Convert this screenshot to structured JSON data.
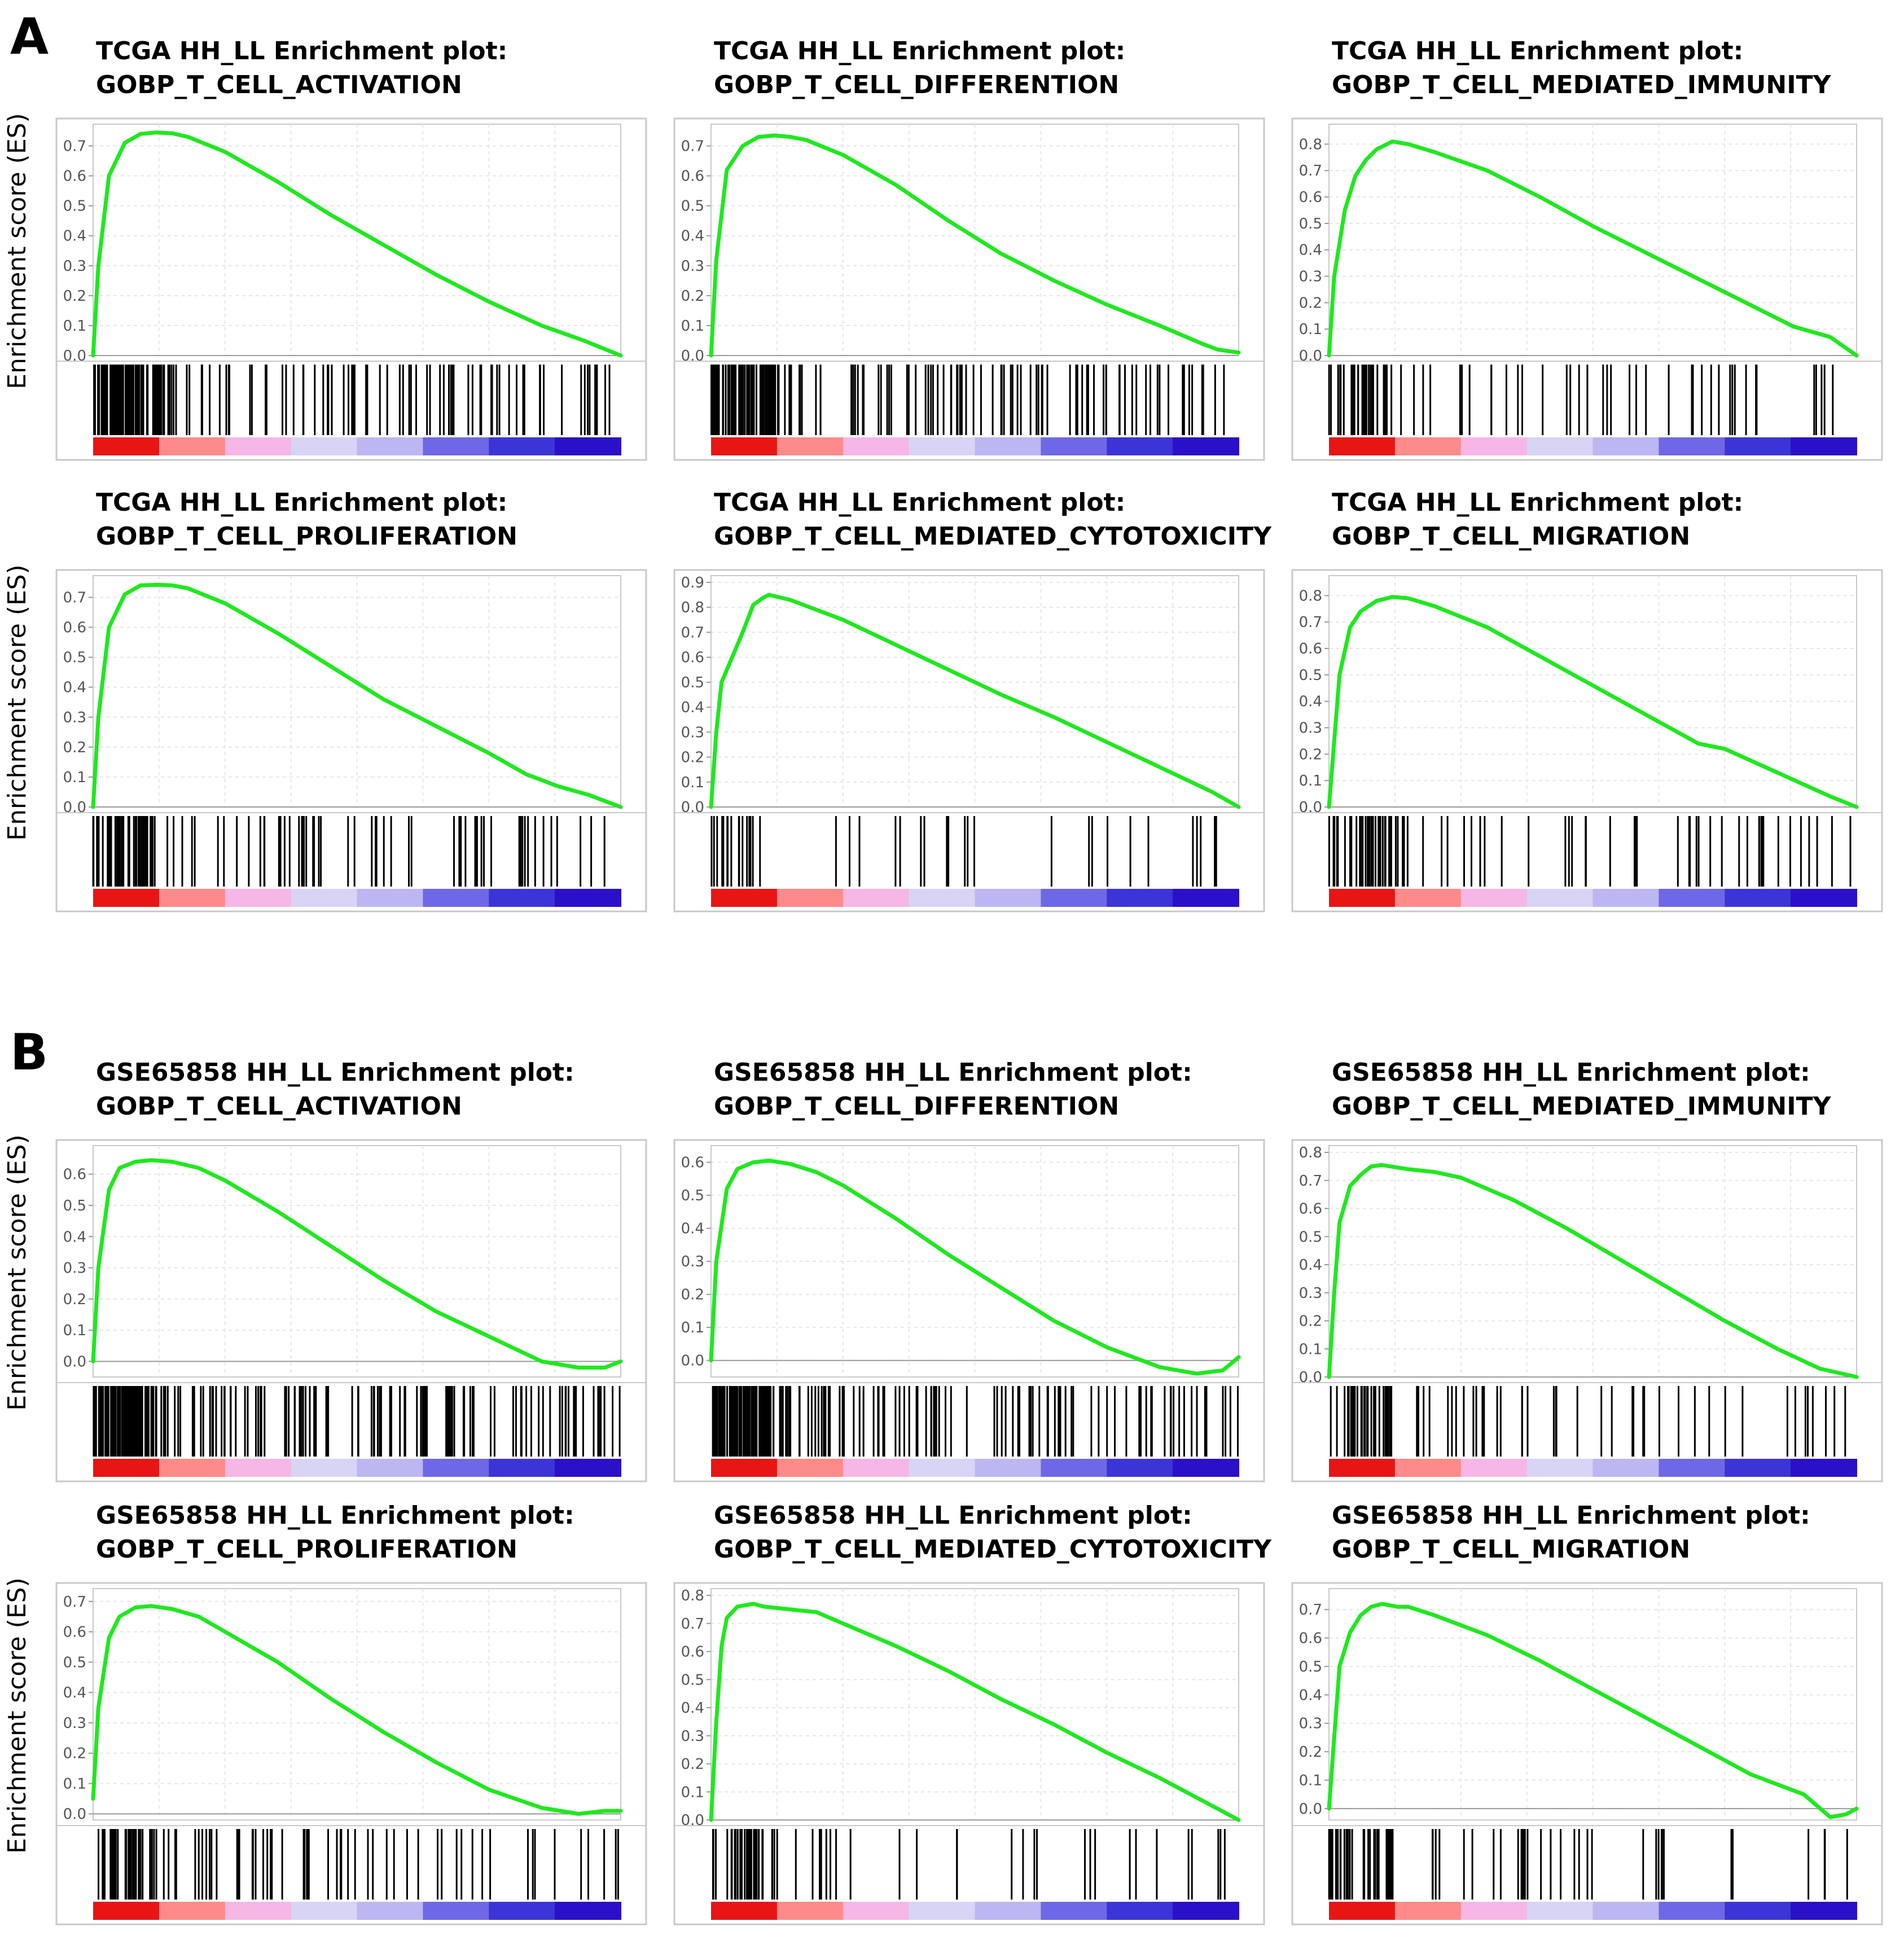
{
  "sections": [
    {
      "letter": "A"
    },
    {
      "letter": "B"
    }
  ],
  "y_axis_label": "Enrichment score (ES)",
  "colors": {
    "curve": "#1fe81f",
    "frame": "#c8c8c8",
    "grid": "#e6e6e6",
    "hit": "#000000",
    "gradient": [
      "#e81515",
      "#ff8a8a",
      "#f6b6e6",
      "#d8d4f6",
      "#bcb6f2",
      "#6f68e6",
      "#3c34d6",
      "#2a10c6"
    ]
  },
  "chart_data": [
    {
      "type": "line",
      "section": 0,
      "title_line1": "TCGA HH_LL Enrichment plot:",
      "title_line2": "GOBP_T_CELL_ACTIVATION",
      "ylabel": "Enrichment score (ES)",
      "ylim": [
        0,
        0.75
      ],
      "yticks": [
        "0.0",
        "0.1",
        "0.2",
        "0.3",
        "0.4",
        "0.5",
        "0.6",
        "0.7"
      ],
      "x": [
        0,
        0.01,
        0.03,
        0.06,
        0.09,
        0.12,
        0.15,
        0.18,
        0.25,
        0.35,
        0.45,
        0.55,
        0.65,
        0.75,
        0.85,
        0.93,
        1.0
      ],
      "values": [
        0,
        0.3,
        0.6,
        0.71,
        0.74,
        0.745,
        0.742,
        0.73,
        0.68,
        0.58,
        0.47,
        0.37,
        0.27,
        0.18,
        0.1,
        0.05,
        0
      ]
    },
    {
      "type": "line",
      "section": 0,
      "title_line1": "TCGA HH_LL Enrichment plot:",
      "title_line2": "GOBP_T_CELL_DIFFERENTION",
      "ylabel": "",
      "ylim": [
        0,
        0.75
      ],
      "yticks": [
        "0.0",
        "0.1",
        "0.2",
        "0.3",
        "0.4",
        "0.5",
        "0.6",
        "0.7"
      ],
      "x": [
        0,
        0.01,
        0.03,
        0.06,
        0.09,
        0.12,
        0.15,
        0.18,
        0.25,
        0.35,
        0.45,
        0.55,
        0.65,
        0.75,
        0.85,
        0.93,
        0.96,
        1.0
      ],
      "values": [
        0,
        0.32,
        0.62,
        0.7,
        0.73,
        0.735,
        0.73,
        0.72,
        0.67,
        0.57,
        0.45,
        0.34,
        0.25,
        0.17,
        0.1,
        0.04,
        0.02,
        0.01
      ]
    },
    {
      "type": "line",
      "section": 0,
      "title_line1": "TCGA HH_LL Enrichment plot:",
      "title_line2": "GOBP_T_CELL_MEDIATED_IMMUNITY",
      "ylabel": "",
      "ylim": [
        0,
        0.85
      ],
      "yticks": [
        "0.0",
        "0.1",
        "0.2",
        "0.3",
        "0.4",
        "0.5",
        "0.6",
        "0.7",
        "0.8"
      ],
      "x": [
        0,
        0.01,
        0.03,
        0.05,
        0.07,
        0.09,
        0.12,
        0.15,
        0.2,
        0.3,
        0.4,
        0.5,
        0.6,
        0.7,
        0.8,
        0.88,
        0.95,
        1.0
      ],
      "values": [
        0,
        0.3,
        0.55,
        0.68,
        0.74,
        0.78,
        0.81,
        0.8,
        0.77,
        0.7,
        0.6,
        0.49,
        0.39,
        0.29,
        0.19,
        0.11,
        0.07,
        0
      ]
    },
    {
      "type": "line",
      "section": 0,
      "title_line1": "TCGA HH_LL Enrichment plot:",
      "title_line2": "GOBP_T_CELL_PROLIFERATION",
      "ylabel": "Enrichment score (ES)",
      "ylim": [
        0,
        0.75
      ],
      "yticks": [
        "0.0",
        "0.1",
        "0.2",
        "0.3",
        "0.4",
        "0.5",
        "0.6",
        "0.7"
      ],
      "x": [
        0,
        0.01,
        0.03,
        0.06,
        0.09,
        0.12,
        0.15,
        0.18,
        0.25,
        0.35,
        0.45,
        0.55,
        0.65,
        0.75,
        0.82,
        0.88,
        0.94,
        1.0
      ],
      "values": [
        0,
        0.3,
        0.6,
        0.71,
        0.74,
        0.742,
        0.74,
        0.73,
        0.68,
        0.58,
        0.47,
        0.36,
        0.27,
        0.18,
        0.11,
        0.07,
        0.04,
        0
      ]
    },
    {
      "type": "line",
      "section": 0,
      "title_line1": "TCGA HH_LL Enrichment plot:",
      "title_line2": "GOBP_T_CELL_MEDIATED_CYTOTOXICITY",
      "ylabel": "",
      "ylim": [
        0,
        0.9
      ],
      "yticks": [
        "0.0",
        "0.1",
        "0.2",
        "0.3",
        "0.4",
        "0.5",
        "0.6",
        "0.7",
        "0.8",
        "0.9"
      ],
      "x": [
        0,
        0.01,
        0.02,
        0.04,
        0.06,
        0.08,
        0.1,
        0.11,
        0.15,
        0.25,
        0.35,
        0.45,
        0.55,
        0.65,
        0.75,
        0.85,
        0.95,
        1.0
      ],
      "values": [
        0,
        0.3,
        0.5,
        0.6,
        0.7,
        0.81,
        0.84,
        0.85,
        0.83,
        0.75,
        0.65,
        0.55,
        0.45,
        0.36,
        0.26,
        0.16,
        0.06,
        0
      ]
    },
    {
      "type": "line",
      "section": 0,
      "title_line1": "TCGA HH_LL Enrichment plot:",
      "title_line2": "GOBP_T_CELL_MIGRATION",
      "ylabel": "",
      "ylim": [
        0,
        0.85
      ],
      "yticks": [
        "0.0",
        "0.1",
        "0.2",
        "0.3",
        "0.4",
        "0.5",
        "0.6",
        "0.7",
        "0.8"
      ],
      "x": [
        0,
        0.01,
        0.02,
        0.04,
        0.06,
        0.09,
        0.12,
        0.15,
        0.2,
        0.3,
        0.4,
        0.5,
        0.6,
        0.7,
        0.75,
        0.85,
        0.95,
        1.0
      ],
      "values": [
        0,
        0.25,
        0.5,
        0.68,
        0.74,
        0.78,
        0.795,
        0.79,
        0.76,
        0.68,
        0.57,
        0.46,
        0.35,
        0.24,
        0.22,
        0.13,
        0.04,
        0
      ]
    },
    {
      "type": "line",
      "section": 1,
      "title_line1": "GSE65858 HH_LL Enrichment plot:",
      "title_line2": "GOBP_T_CELL_ACTIVATION",
      "ylabel": "Enrichment score (ES)",
      "ylim": [
        -0.05,
        0.67
      ],
      "yticks": [
        "0.0",
        "0.1",
        "0.2",
        "0.3",
        "0.4",
        "0.5",
        "0.6"
      ],
      "x": [
        0,
        0.01,
        0.03,
        0.05,
        0.08,
        0.11,
        0.15,
        0.2,
        0.25,
        0.35,
        0.45,
        0.55,
        0.65,
        0.75,
        0.85,
        0.92,
        0.97,
        1.0
      ],
      "values": [
        0,
        0.3,
        0.55,
        0.62,
        0.64,
        0.645,
        0.64,
        0.62,
        0.58,
        0.48,
        0.37,
        0.26,
        0.16,
        0.08,
        0.0,
        -0.02,
        -0.02,
        0.0
      ]
    },
    {
      "type": "line",
      "section": 1,
      "title_line1": "GSE65858 HH_LL Enrichment plot:",
      "title_line2": "GOBP_T_CELL_DIFFERENTION",
      "ylabel": "",
      "ylim": [
        -0.05,
        0.63
      ],
      "yticks": [
        "0.0",
        "0.1",
        "0.2",
        "0.3",
        "0.4",
        "0.5",
        "0.6"
      ],
      "x": [
        0,
        0.01,
        0.03,
        0.05,
        0.08,
        0.11,
        0.15,
        0.2,
        0.25,
        0.35,
        0.45,
        0.55,
        0.65,
        0.75,
        0.85,
        0.92,
        0.97,
        1.0
      ],
      "values": [
        0,
        0.3,
        0.52,
        0.58,
        0.6,
        0.605,
        0.595,
        0.57,
        0.53,
        0.43,
        0.32,
        0.22,
        0.12,
        0.04,
        -0.02,
        -0.04,
        -0.03,
        0.01
      ]
    },
    {
      "type": "line",
      "section": 1,
      "title_line1": "GSE65858 HH_LL Enrichment plot:",
      "title_line2": "GOBP_T_CELL_MEDIATED_IMMUNITY",
      "ylabel": "",
      "ylim": [
        0,
        0.8
      ],
      "yticks": [
        "0.0",
        "0.1",
        "0.2",
        "0.3",
        "0.4",
        "0.5",
        "0.6",
        "0.7",
        "0.8"
      ],
      "x": [
        0,
        0.01,
        0.02,
        0.04,
        0.06,
        0.08,
        0.1,
        0.15,
        0.2,
        0.25,
        0.35,
        0.45,
        0.55,
        0.65,
        0.75,
        0.85,
        0.93,
        1.0
      ],
      "values": [
        0,
        0.3,
        0.55,
        0.68,
        0.72,
        0.75,
        0.755,
        0.74,
        0.73,
        0.71,
        0.63,
        0.53,
        0.42,
        0.31,
        0.2,
        0.1,
        0.03,
        0
      ]
    },
    {
      "type": "line",
      "section": 1,
      "title_line1": "GSE65858 HH_LL Enrichment plot:",
      "title_line2": "GOBP_T_CELL_PROLIFERATION",
      "ylabel": "Enrichment score (ES)",
      "ylim": [
        -0.02,
        0.72
      ],
      "yticks": [
        "0.0",
        "0.1",
        "0.2",
        "0.3",
        "0.4",
        "0.5",
        "0.6",
        "0.7"
      ],
      "x": [
        0,
        0.01,
        0.03,
        0.05,
        0.08,
        0.11,
        0.15,
        0.2,
        0.25,
        0.35,
        0.45,
        0.55,
        0.65,
        0.75,
        0.85,
        0.92,
        0.97,
        1.0
      ],
      "values": [
        0.05,
        0.35,
        0.58,
        0.65,
        0.68,
        0.685,
        0.675,
        0.65,
        0.6,
        0.5,
        0.38,
        0.27,
        0.17,
        0.08,
        0.02,
        0.0,
        0.01,
        0.01
      ]
    },
    {
      "type": "line",
      "section": 1,
      "title_line1": "GSE65858 HH_LL Enrichment plot:",
      "title_line2": "GOBP_T_CELL_MEDIATED_CYTOTOXICITY",
      "ylabel": "",
      "ylim": [
        0,
        0.8
      ],
      "yticks": [
        "0.0",
        "0.1",
        "0.2",
        "0.3",
        "0.4",
        "0.5",
        "0.6",
        "0.7",
        "0.8"
      ],
      "x": [
        0,
        0.01,
        0.02,
        0.03,
        0.05,
        0.08,
        0.1,
        0.15,
        0.2,
        0.25,
        0.35,
        0.45,
        0.55,
        0.65,
        0.75,
        0.85,
        0.95,
        1.0
      ],
      "values": [
        0,
        0.35,
        0.62,
        0.72,
        0.76,
        0.77,
        0.76,
        0.75,
        0.74,
        0.7,
        0.62,
        0.53,
        0.43,
        0.34,
        0.24,
        0.15,
        0.05,
        0
      ]
    },
    {
      "type": "line",
      "section": 1,
      "title_line1": "GSE65858 HH_LL Enrichment plot:",
      "title_line2": "GOBP_T_CELL_MIGRATION",
      "ylabel": "",
      "ylim": [
        -0.04,
        0.75
      ],
      "yticks": [
        "0.0",
        "0.1",
        "0.2",
        "0.3",
        "0.4",
        "0.5",
        "0.6",
        "0.7"
      ],
      "x": [
        0,
        0.01,
        0.02,
        0.04,
        0.06,
        0.08,
        0.1,
        0.13,
        0.15,
        0.2,
        0.3,
        0.4,
        0.5,
        0.6,
        0.7,
        0.8,
        0.9,
        0.95,
        0.98,
        1.0
      ],
      "values": [
        0,
        0.25,
        0.5,
        0.62,
        0.68,
        0.71,
        0.72,
        0.71,
        0.71,
        0.68,
        0.61,
        0.52,
        0.42,
        0.32,
        0.22,
        0.12,
        0.05,
        -0.03,
        -0.02,
        0.0
      ]
    }
  ]
}
